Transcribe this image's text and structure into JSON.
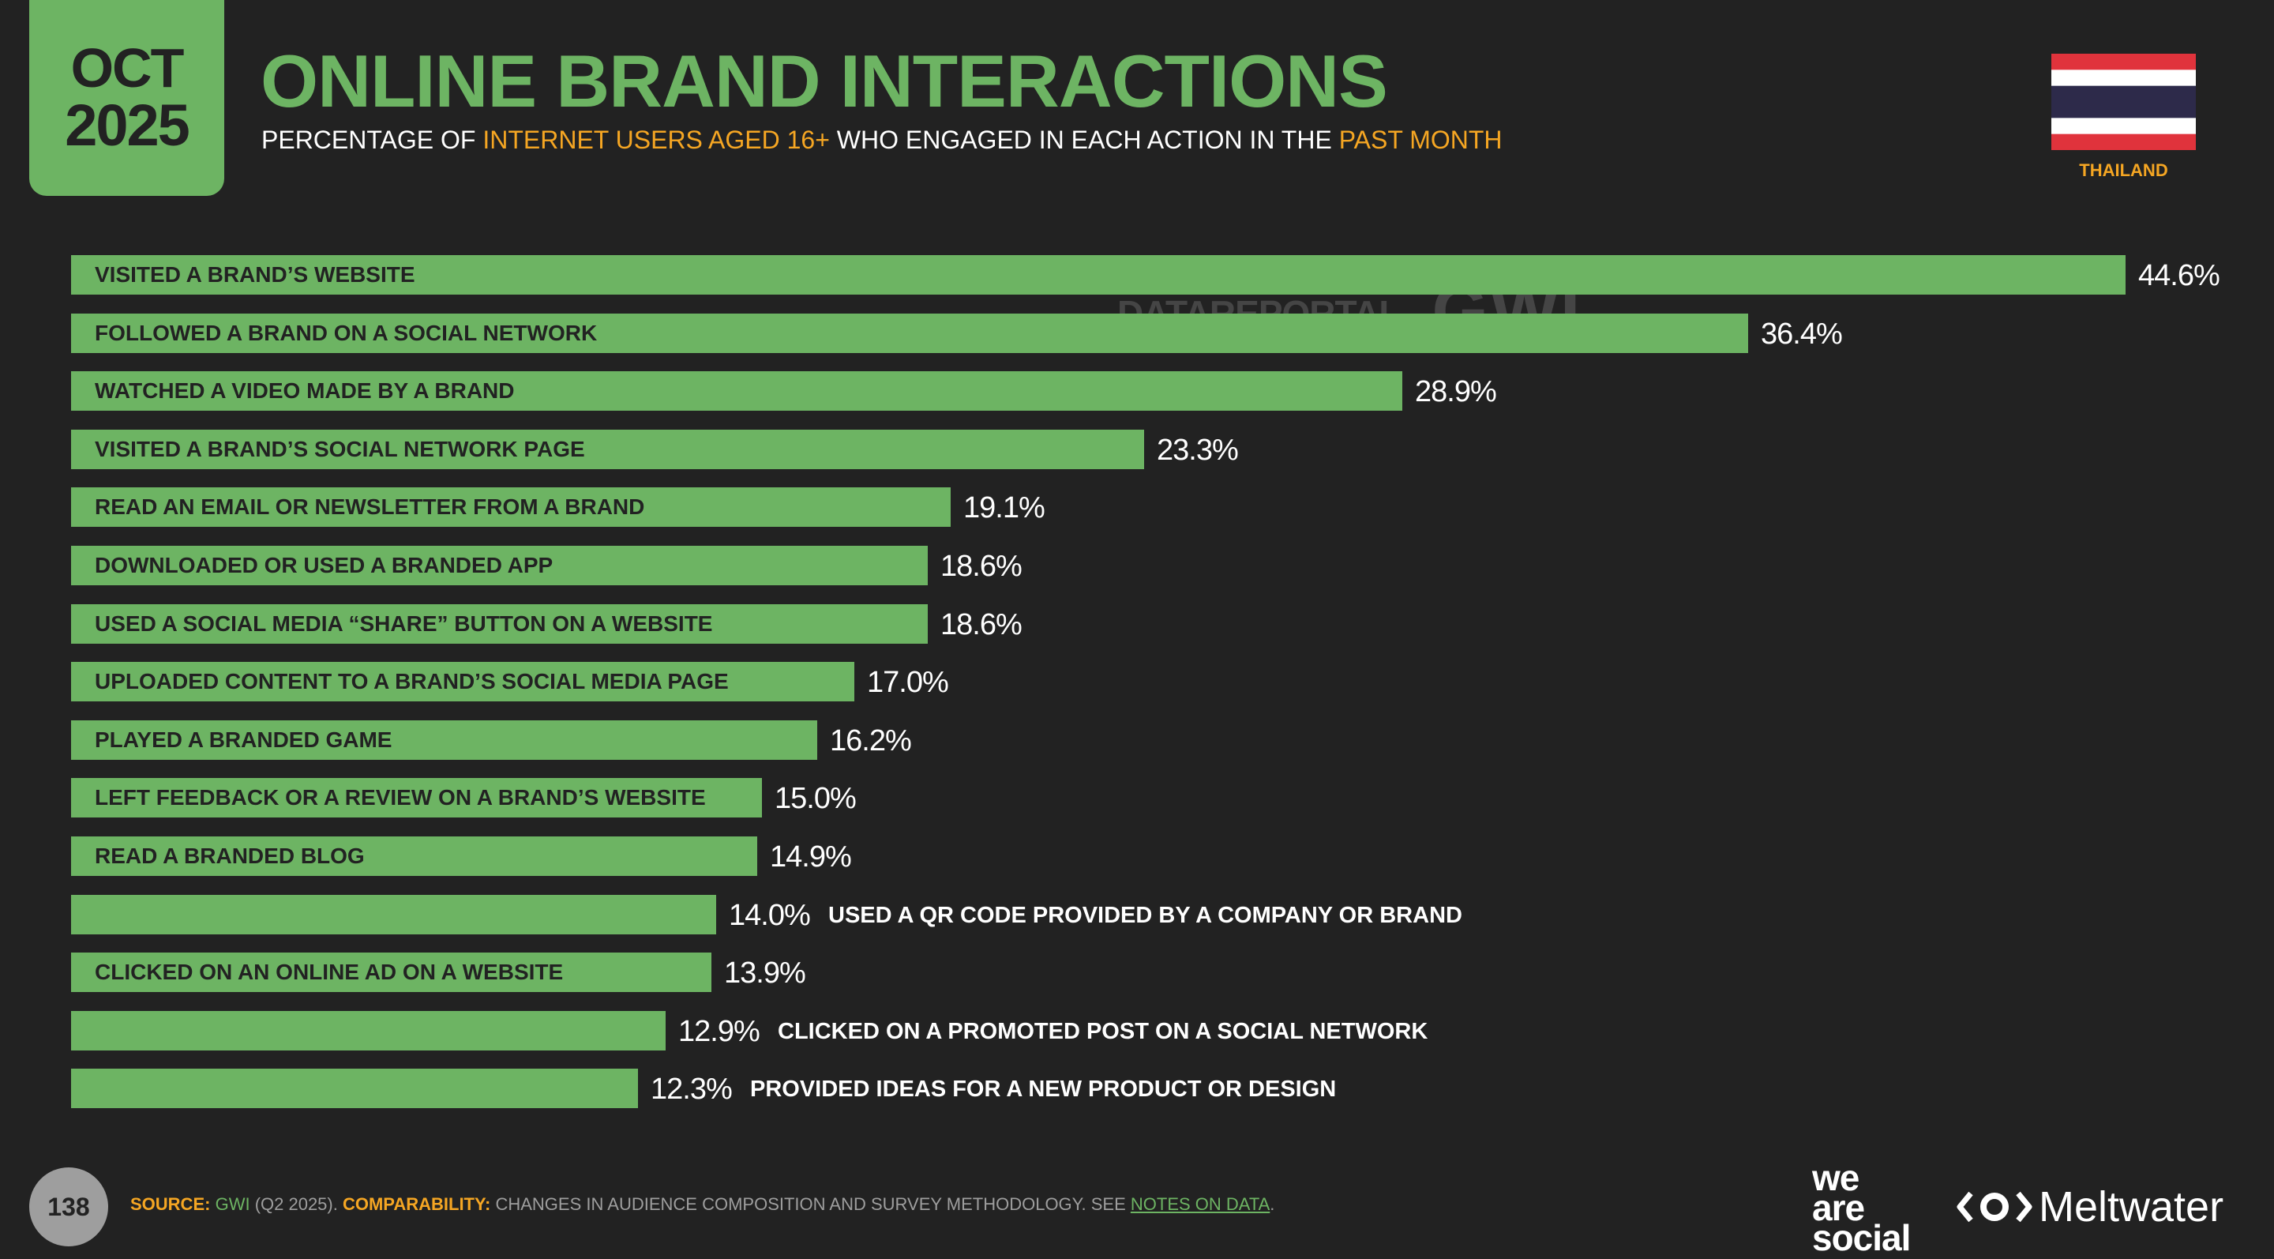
{
  "header": {
    "date_month": "OCT",
    "date_year": "2025",
    "title": "ONLINE BRAND INTERACTIONS",
    "subtitle_parts": [
      "PERCENTAGE OF ",
      "INTERNET USERS AGED 16+",
      " WHO ENGAGED IN EACH ACTION IN THE ",
      "PAST MONTH"
    ],
    "country": "THAILAND"
  },
  "watermark": {
    "text": "DATAREPORTAL",
    "gwi": "GWI."
  },
  "colors": {
    "bar": "#6db463",
    "accent": "#f5a623",
    "background": "#222222"
  },
  "chart_data": {
    "type": "bar",
    "orientation": "horizontal",
    "categories": [
      "VISITED A BRAND’S WEBSITE",
      "FOLLOWED A BRAND ON A SOCIAL NETWORK",
      "WATCHED A VIDEO MADE BY A BRAND",
      "VISITED A BRAND’S SOCIAL NETWORK PAGE",
      "READ AN EMAIL OR NEWSLETTER FROM A BRAND",
      "DOWNLOADED OR USED A BRANDED APP",
      "USED A SOCIAL MEDIA “SHARE” BUTTON ON A WEBSITE",
      "UPLOADED CONTENT TO A BRAND’S SOCIAL MEDIA PAGE",
      "PLAYED A BRANDED GAME",
      "LEFT FEEDBACK OR A REVIEW ON A BRAND’S WEBSITE",
      "READ A BRANDED BLOG",
      "USED A QR CODE PROVIDED BY A COMPANY OR BRAND",
      "CLICKED ON AN ONLINE AD ON A WEBSITE",
      "CLICKED ON A PROMOTED POST ON A SOCIAL NETWORK",
      "PROVIDED IDEAS FOR A NEW PRODUCT OR DESIGN"
    ],
    "values": [
      44.6,
      36.4,
      28.9,
      23.3,
      19.1,
      18.6,
      18.6,
      17.0,
      16.2,
      15.0,
      14.9,
      14.0,
      13.9,
      12.9,
      12.3
    ],
    "value_labels": [
      "44.6%",
      "36.4%",
      "28.9%",
      "23.3%",
      "19.1%",
      "18.6%",
      "18.6%",
      "17.0%",
      "16.2%",
      "15.0%",
      "14.9%",
      "14.0%",
      "13.9%",
      "12.9%",
      "12.3%"
    ],
    "label_outside": [
      false,
      false,
      false,
      false,
      false,
      false,
      false,
      false,
      false,
      false,
      false,
      true,
      false,
      true,
      true
    ],
    "unit": "%",
    "xlim": [
      0,
      44.6
    ]
  },
  "footer": {
    "page_number": "138",
    "source_label": "SOURCE:",
    "source_text": "GWI",
    "source_detail": " (Q2 2025). ",
    "comparability_label": "COMPARABILITY:",
    "comparability_text": " CHANGES IN AUDIENCE COMPOSITION AND SURVEY METHODOLOGY. SEE ",
    "notes_link": "NOTES ON DATA",
    "period": "."
  },
  "logos": {
    "was_line1": "we",
    "was_line2": "are",
    "was_line3": "social",
    "meltwater": "Meltwater"
  }
}
